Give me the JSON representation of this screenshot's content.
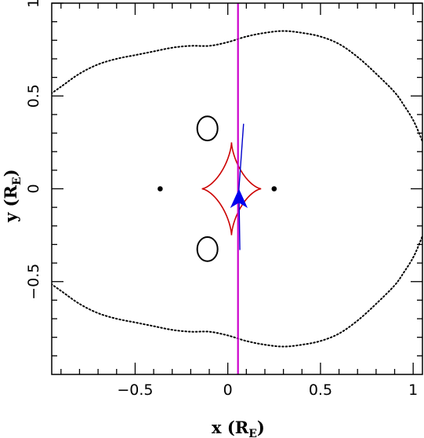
{
  "chart_data": {
    "type": "scatter",
    "title": "",
    "xlabel": "x",
    "xlabel_unit": "R",
    "xlabel_unit_sub": "E",
    "ylabel": "y",
    "ylabel_unit": "R",
    "ylabel_unit_sub": "E",
    "xlim": [
      -0.95,
      1.05
    ],
    "ylim": [
      -1.0,
      1.0
    ],
    "grid": false,
    "x_ticks": [
      {
        "value": -0.5,
        "label": "−0.5"
      },
      {
        "value": 0,
        "label": "0"
      },
      {
        "value": 0.5,
        "label": "0.5"
      },
      {
        "value": 1,
        "label": "1"
      }
    ],
    "y_ticks": [
      {
        "value": -0.5,
        "label": "−0.5"
      },
      {
        "value": 0,
        "label": "0"
      },
      {
        "value": 0.5,
        "label": "0.5"
      },
      {
        "value": 1,
        "label": "1"
      }
    ],
    "lens_masses": [
      {
        "x": -0.365,
        "y": 0.0
      },
      {
        "x": 0.25,
        "y": 0.0
      }
    ],
    "caustic": {
      "color": "#cc0000",
      "center_x": 0.02,
      "center_y": 0.0,
      "half_width": 0.16,
      "half_height": 0.25
    },
    "outer_critical_curve": {
      "style": "dotted",
      "color": "#000000",
      "points": [
        [
          -1.0,
          0.48
        ],
        [
          -0.9,
          0.55
        ],
        [
          -0.8,
          0.62
        ],
        [
          -0.7,
          0.67
        ],
        [
          -0.6,
          0.7
        ],
        [
          -0.5,
          0.72
        ],
        [
          -0.4,
          0.74
        ],
        [
          -0.3,
          0.76
        ],
        [
          -0.2,
          0.77
        ],
        [
          -0.1,
          0.77
        ],
        [
          0.0,
          0.79
        ],
        [
          0.1,
          0.82
        ],
        [
          0.2,
          0.84
        ],
        [
          0.3,
          0.85
        ],
        [
          0.4,
          0.84
        ],
        [
          0.5,
          0.82
        ],
        [
          0.6,
          0.78
        ],
        [
          0.7,
          0.71
        ],
        [
          0.8,
          0.62
        ],
        [
          0.9,
          0.52
        ],
        [
          0.95,
          0.45
        ],
        [
          1.0,
          0.37
        ],
        [
          1.04,
          0.28
        ],
        [
          1.07,
          0.2
        ]
      ]
    },
    "inner_critical_curves": [
      {
        "center_x": -0.11,
        "center_y": 0.325,
        "rx": 0.055,
        "ry": 0.065
      },
      {
        "center_x": -0.11,
        "center_y": -0.325,
        "rx": 0.055,
        "ry": 0.065
      }
    ],
    "source_trajectory": {
      "color": "#cc00cc",
      "points": [
        [
          0.055,
          -1.0
        ],
        [
          0.055,
          1.0
        ]
      ]
    },
    "model_trajectory": {
      "color": "#0000cc",
      "points": [
        [
          0.085,
          0.35
        ],
        [
          0.06,
          0.0
        ],
        [
          0.065,
          -0.33
        ]
      ]
    },
    "source_marker": {
      "color": "#0000ee",
      "x": 0.06,
      "y": -0.06
    }
  }
}
